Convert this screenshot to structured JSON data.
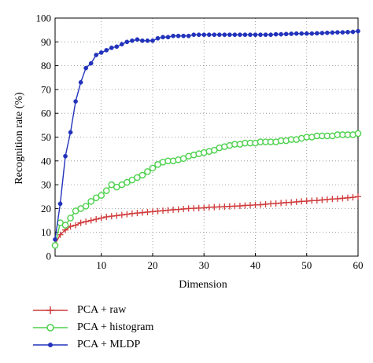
{
  "chart_data": {
    "type": "line",
    "xlabel": "Dimension",
    "ylabel": "Recognition rate (%)",
    "xlim": [
      1,
      60
    ],
    "ylim": [
      0,
      100
    ],
    "xticks": [
      10,
      20,
      30,
      40,
      50,
      60
    ],
    "yticks": [
      0,
      10,
      20,
      30,
      40,
      50,
      60,
      70,
      80,
      90,
      100
    ],
    "grid": true,
    "legend_position": "bottom-left",
    "x": [
      1,
      2,
      3,
      4,
      5,
      6,
      7,
      8,
      9,
      10,
      11,
      12,
      13,
      14,
      15,
      16,
      17,
      18,
      19,
      20,
      21,
      22,
      23,
      24,
      25,
      26,
      27,
      28,
      29,
      30,
      31,
      32,
      33,
      34,
      35,
      36,
      37,
      38,
      39,
      40,
      41,
      42,
      43,
      44,
      45,
      46,
      47,
      48,
      49,
      50,
      51,
      52,
      53,
      54,
      55,
      56,
      57,
      58,
      59,
      60
    ],
    "series": [
      {
        "name": "PCA + raw",
        "color": "#d03a3a",
        "marker": "plus",
        "values": [
          5,
          9,
          11,
          12.5,
          13,
          14,
          14.5,
          15,
          15.5,
          16,
          16.5,
          16.8,
          17,
          17.3,
          17.6,
          17.9,
          18.1,
          18.3,
          18.5,
          18.7,
          18.9,
          19.1,
          19.3,
          19.5,
          19.6,
          19.8,
          20,
          20.1,
          20.2,
          20.3,
          20.5,
          20.6,
          20.7,
          20.8,
          20.9,
          21,
          21.1,
          21.3,
          21.4,
          21.5,
          21.6,
          21.8,
          22,
          22.1,
          22.3,
          22.5,
          22.6,
          22.8,
          23,
          23.1,
          23.3,
          23.4,
          23.6,
          23.8,
          24,
          24.1,
          24.3,
          24.5,
          24.7,
          25
        ]
      },
      {
        "name": "PCA + histogram",
        "color": "#4cd14c",
        "marker": "circle",
        "values": [
          4.5,
          14,
          13,
          16,
          19,
          20,
          21,
          23,
          24.5,
          25.5,
          27.5,
          30,
          29,
          30,
          31,
          32,
          33,
          34,
          35.5,
          37,
          38.5,
          39.5,
          40,
          40,
          40.5,
          41,
          42,
          42.5,
          43,
          43.5,
          44,
          44.5,
          45.5,
          46,
          46.5,
          47,
          47,
          47.5,
          47.5,
          47.5,
          48,
          48,
          48,
          48,
          48.5,
          48.5,
          49,
          49,
          49.5,
          50,
          50,
          50.5,
          50.5,
          50.5,
          50.5,
          51,
          51,
          51,
          51,
          51.5
        ]
      },
      {
        "name": "PCA + MLDP",
        "color": "#2233bb",
        "marker": "dot",
        "values": [
          7,
          22,
          42,
          52,
          65,
          73,
          79,
          81,
          84.5,
          85.5,
          86.5,
          87.5,
          88,
          89,
          90,
          90.5,
          91,
          90.5,
          90.5,
          90.5,
          91.5,
          92,
          92,
          92.5,
          92.5,
          92.5,
          92.5,
          93,
          93,
          93,
          93,
          93,
          93,
          93,
          93,
          93,
          93,
          93,
          93,
          93,
          93,
          93,
          93,
          93.2,
          93.2,
          93.3,
          93.4,
          93.5,
          93.5,
          93.5,
          93.5,
          93.6,
          93.7,
          93.8,
          93.9,
          94,
          94,
          94.1,
          94.2,
          94.5
        ]
      }
    ]
  }
}
